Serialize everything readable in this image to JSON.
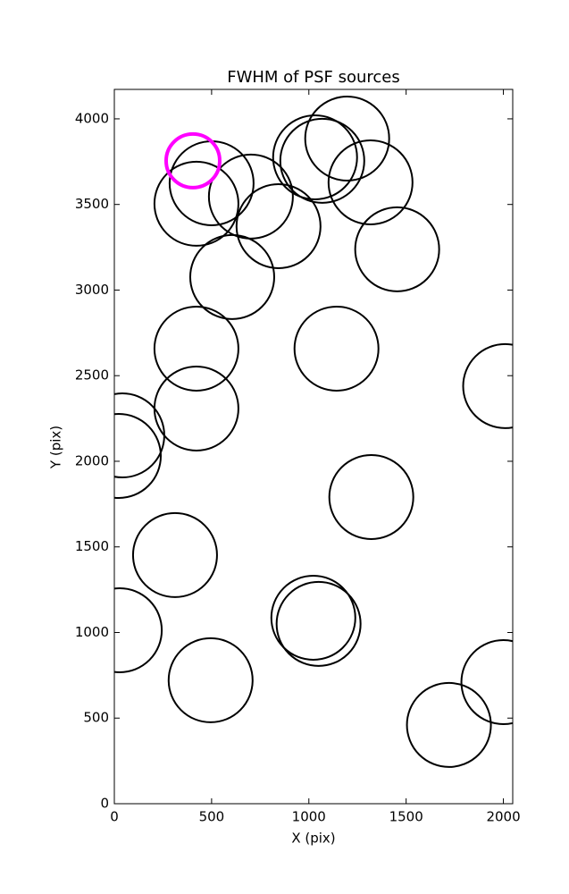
{
  "chart_data": {
    "type": "scatter",
    "title": "FWHM of PSF sources",
    "x_label": "X (pix)",
    "y_label": "Y (pix)",
    "xlim": [
      0,
      2048
    ],
    "ylim": [
      0,
      4172
    ],
    "xticks": [
      0,
      500,
      1000,
      1500,
      2000
    ],
    "yticks": [
      0,
      500,
      1000,
      1500,
      2000,
      2500,
      3000,
      3500,
      4000
    ],
    "series": [
      {
        "color": "#000000",
        "x": [
          500,
          422,
          702,
          844,
          1032,
          1069,
          1197,
          1317,
          1454,
          606,
          422,
          1142,
          2009,
          41,
          23,
          422,
          1321,
          312,
          28,
          1023,
          1050,
          495,
          2000,
          1720
        ],
        "values": [
          3624,
          3504,
          3546,
          3373,
          3775,
          3755,
          3885,
          3629,
          3238,
          3076,
          2658,
          2658,
          2439,
          2151,
          2031,
          2308,
          1791,
          1452,
          1013,
          1086,
          1050,
          721,
          710,
          460
        ]
      },
      {
        "color": "#ff00ff",
        "x": [
          404
        ],
        "values": [
          3755
        ]
      }
    ]
  }
}
